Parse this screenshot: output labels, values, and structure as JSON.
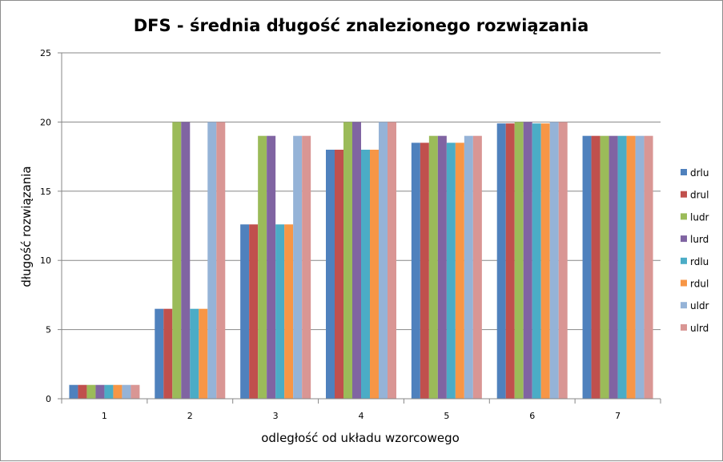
{
  "chart_data": {
    "type": "bar",
    "title": "DFS - średnia długość znalezionego rozwiązania",
    "xlabel": "odległość od układu wzorcowego",
    "ylabel": "długość rozwiązania",
    "categories": [
      "1",
      "2",
      "3",
      "4",
      "5",
      "6",
      "7"
    ],
    "ylim": [
      0,
      25
    ],
    "yticks": [
      0,
      5,
      10,
      15,
      20,
      25
    ],
    "grid": true,
    "legend_position": "right",
    "series": [
      {
        "name": "drlu",
        "color": "#4F81BD",
        "values": [
          1,
          6.5,
          12.6,
          18,
          18.5,
          19.9,
          19
        ]
      },
      {
        "name": "drul",
        "color": "#C0504D",
        "values": [
          1,
          6.5,
          12.6,
          18,
          18.5,
          19.9,
          19
        ]
      },
      {
        "name": "ludr",
        "color": "#9BBB59",
        "values": [
          1,
          20,
          19,
          20,
          19,
          20,
          19
        ]
      },
      {
        "name": "lurd",
        "color": "#8064A2",
        "values": [
          1,
          20,
          19,
          20,
          19,
          20,
          19
        ]
      },
      {
        "name": "rdlu",
        "color": "#4BACC6",
        "values": [
          1,
          6.5,
          12.6,
          18,
          18.5,
          19.9,
          19
        ]
      },
      {
        "name": "rdul",
        "color": "#F79646",
        "values": [
          1,
          6.5,
          12.6,
          18,
          18.5,
          19.9,
          19
        ]
      },
      {
        "name": "uldr",
        "color": "#95B3D7",
        "values": [
          1,
          20,
          19,
          20,
          19,
          20,
          19
        ]
      },
      {
        "name": "ulrd",
        "color": "#D99694",
        "values": [
          1,
          20,
          19,
          20,
          19,
          20,
          19
        ]
      }
    ]
  }
}
